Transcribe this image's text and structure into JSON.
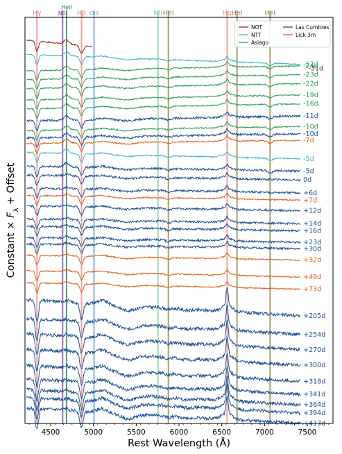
{
  "chart_data": {
    "type": "line",
    "title": "",
    "xlabel": "Rest Wavelength (Å)",
    "ylabel": "Constant × F_λ + Offset",
    "xlim": [
      4200,
      7800
    ],
    "xticks": [
      4500,
      5000,
      5500,
      6000,
      6500,
      7000,
      7500
    ],
    "yticks": [],
    "legend": {
      "placement": "top-right",
      "entries": [
        {
          "name": "NOT",
          "color": "#8b2a0e"
        },
        {
          "name": "NTT",
          "color": "#3bb6c4"
        },
        {
          "name": "Asiago",
          "color": "#2a9d54"
        },
        {
          "name": "Las Cumbres",
          "color": "#1a4f96"
        },
        {
          "name": "Lick 3m",
          "color": "#de5f17"
        }
      ]
    },
    "line_ids": [
      {
        "label": "Hγ",
        "wavelength": 4340,
        "color": "#f08080"
      },
      {
        "label": "NIII",
        "wavelength": 4640,
        "color": "#7b3f9e"
      },
      {
        "label": "HeII",
        "wavelength": 4686,
        "color": "#1e7a5a"
      },
      {
        "label": "Hβ",
        "wavelength": 4861,
        "color": "#f08080"
      },
      {
        "label": "OIII",
        "wavelength": 5007,
        "color": "#5b9bd5"
      },
      {
        "label": "NII",
        "wavelength": 5755,
        "color": "#88c999"
      },
      {
        "label": "HeI",
        "wavelength": 5876,
        "color": "#8b7d3a"
      },
      {
        "label": "Hα",
        "wavelength": 6563,
        "color": "#f08080"
      },
      {
        "label": "HeI",
        "wavelength": 6678,
        "color": "#8b7d3a"
      },
      {
        "label": "HeI",
        "wavelength": 7065,
        "color": "#8b7d3a"
      }
    ],
    "series": [
      {
        "name": "-31d",
        "instrument": "NOT",
        "xrange": [
          4220,
          7480
        ],
        "offset": 46.2,
        "slope": -3.5
      },
      {
        "name": "-27d",
        "instrument": "NTT",
        "xrange": [
          4220,
          7420
        ],
        "offset": 44.4,
        "slope": -1.2
      },
      {
        "name": "-24d",
        "instrument": "Asiago",
        "xrange": [
          4220,
          7420
        ],
        "offset": 42.4,
        "slope": 0.6
      },
      {
        "name": "-23d",
        "instrument": "Asiago",
        "xrange": [
          4220,
          7420
        ],
        "offset": 41.3,
        "slope": 0.6
      },
      {
        "name": "-22d",
        "instrument": "Asiago",
        "xrange": [
          4220,
          7420
        ],
        "offset": 40.2,
        "slope": 0.6
      },
      {
        "name": "-19d",
        "instrument": "Asiago",
        "xrange": [
          4220,
          7420
        ],
        "offset": 38.8,
        "slope": 0.6
      },
      {
        "name": "-16d",
        "instrument": "Asiago",
        "xrange": [
          4220,
          7420
        ],
        "offset": 37.7,
        "slope": 0.6
      },
      {
        "name": "-11d",
        "instrument": "Las Cumbres",
        "xrange": [
          4220,
          7420
        ],
        "offset": 36.2,
        "slope": 0.6
      },
      {
        "name": "-10d",
        "instrument": "Asiago",
        "xrange": [
          4220,
          7420
        ],
        "offset": 35.0,
        "slope": 0.5
      },
      {
        "name": "-10d",
        "instrument": "Las Cumbres",
        "xrange": [
          4220,
          7420
        ],
        "offset": 34.1,
        "slope": 0.5
      },
      {
        "name": "-7d",
        "instrument": "Lick 3m",
        "xrange": [
          4220,
          7420
        ],
        "offset": 33.4,
        "slope": 0.4
      },
      {
        "name": "-5d",
        "instrument": "NTT",
        "xrange": [
          4220,
          7420
        ],
        "offset": 32.3,
        "slope": -0.8
      },
      {
        "name": "-5d",
        "instrument": "Las Cumbres",
        "xrange": [
          4220,
          7420
        ],
        "offset": 30.6,
        "slope": -0.6
      },
      {
        "name": "0d",
        "instrument": "Las Cumbres",
        "xrange": [
          4220,
          7420
        ],
        "offset": 29.5,
        "slope": -0.6
      },
      {
        "name": "+6d",
        "instrument": "Las Cumbres",
        "xrange": [
          4220,
          7420
        ],
        "offset": 27.9,
        "slope": -0.6
      },
      {
        "name": "+7d",
        "instrument": "Lick 3m",
        "xrange": [
          4220,
          7420
        ],
        "offset": 27.0,
        "slope": -0.6
      },
      {
        "name": "+12d",
        "instrument": "Las Cumbres",
        "xrange": [
          4220,
          7420
        ],
        "offset": 25.7,
        "slope": -0.6
      },
      {
        "name": "+14d",
        "instrument": "Las Cumbres",
        "xrange": [
          4220,
          7420
        ],
        "offset": 24.1,
        "slope": -0.6
      },
      {
        "name": "+16d",
        "instrument": "Las Cumbres",
        "xrange": [
          4220,
          7420
        ],
        "offset": 23.2,
        "slope": -0.6
      },
      {
        "name": "+23d",
        "instrument": "Las Cumbres",
        "xrange": [
          4220,
          7420
        ],
        "offset": 21.8,
        "slope": -0.6
      },
      {
        "name": "+30d",
        "instrument": "Las Cumbres",
        "xrange": [
          4220,
          7420
        ],
        "offset": 21.0,
        "slope": -0.6
      },
      {
        "name": "+32d",
        "instrument": "Lick 3m",
        "xrange": [
          4220,
          7420
        ],
        "offset": 19.6,
        "slope": -0.6
      },
      {
        "name": "+49d",
        "instrument": "Lick 3m",
        "xrange": [
          4220,
          7420
        ],
        "offset": 17.7,
        "slope": -0.8
      },
      {
        "name": "+73d",
        "instrument": "Lick 3m",
        "xrange": [
          4220,
          7420
        ],
        "offset": 16.2,
        "slope": -0.8
      },
      {
        "name": "+205d",
        "instrument": "Las Cumbres",
        "xrange": [
          4220,
          7420
        ],
        "offset": 14.1,
        "slope": -2.0
      },
      {
        "name": "+254d",
        "instrument": "Las Cumbres",
        "xrange": [
          4220,
          7420
        ],
        "offset": 11.8,
        "slope": -2.0
      },
      {
        "name": "+270d",
        "instrument": "Las Cumbres",
        "xrange": [
          4220,
          7420
        ],
        "offset": 9.9,
        "slope": -2.0
      },
      {
        "name": "+300d",
        "instrument": "Las Cumbres",
        "xrange": [
          4220,
          7420
        ],
        "offset": 8.0,
        "slope": -2.0
      },
      {
        "name": "+318d",
        "instrument": "Las Cumbres",
        "xrange": [
          4220,
          7420
        ],
        "offset": 6.0,
        "slope": -2.0
      },
      {
        "name": "+341d",
        "instrument": "Las Cumbres",
        "xrange": [
          4220,
          7420
        ],
        "offset": 4.3,
        "slope": -1.9
      },
      {
        "name": "+364d",
        "instrument": "Las Cumbres",
        "xrange": [
          4220,
          7420
        ],
        "offset": 3.0,
        "slope": -1.9
      },
      {
        "name": "+394d",
        "instrument": "Las Cumbres",
        "xrange": [
          4220,
          7420
        ],
        "offset": 2.0,
        "slope": -1.9
      },
      {
        "name": "+417d",
        "instrument": "Las Cumbres",
        "xrange": [
          4220,
          7420
        ],
        "offset": 0.7,
        "slope": -1.9
      }
    ]
  }
}
